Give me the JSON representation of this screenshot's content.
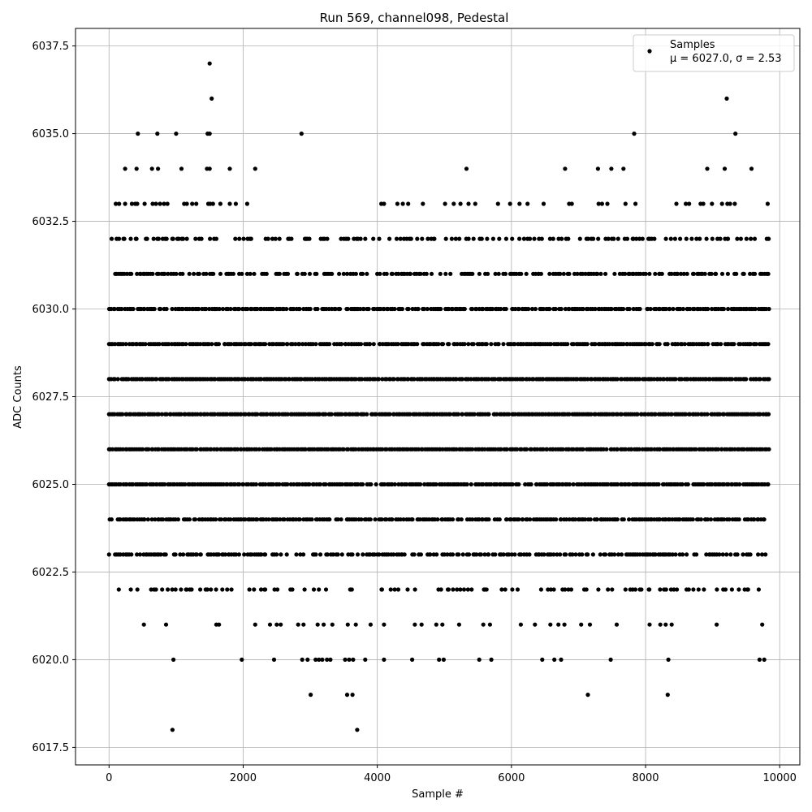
{
  "chart_data": {
    "type": "scatter",
    "title": "Run 569, channel098, Pedestal",
    "xlabel": "Sample #",
    "ylabel": "ADC Counts",
    "xlim": [
      -500,
      10300
    ],
    "ylim": [
      6017.0,
      6038.0
    ],
    "x_ticks": [
      0,
      2000,
      4000,
      6000,
      8000,
      10000
    ],
    "x_tick_labels": [
      "0",
      "2000",
      "4000",
      "6000",
      "8000",
      "10000"
    ],
    "y_ticks": [
      6017.5,
      6020.0,
      6022.5,
      6025.0,
      6027.5,
      6030.0,
      6032.5,
      6035.0,
      6037.5
    ],
    "y_tick_labels": [
      "6017.5",
      "6020.0",
      "6022.5",
      "6025.0",
      "6027.5",
      "6030.0",
      "6032.5",
      "6035.0",
      "6037.5"
    ],
    "grid": true,
    "legend_position": "top-right",
    "marker_color": "#000000",
    "series": [
      {
        "name": "Samples",
        "label_line2": "μ = 6027.0, σ = 2.53",
        "x_range": [
          0,
          9840
        ],
        "levels": [
          {
            "y": 6024,
            "density": 0.85
          },
          {
            "y": 6025,
            "density": 0.92
          },
          {
            "y": 6026,
            "density": 0.99
          },
          {
            "y": 6027,
            "density": 0.99
          },
          {
            "y": 6028,
            "density": 0.99
          },
          {
            "y": 6029,
            "density": 0.92
          },
          {
            "y": 6030,
            "density": 0.85
          },
          {
            "y": 6031,
            "density": 0.62
          },
          {
            "y": 6032,
            "density": 0.42
          },
          {
            "y": 6023,
            "density": 0.65
          },
          {
            "y": 6022,
            "density": 0.32
          }
        ],
        "outliers": [
          {
            "x": 946,
            "y": 6018
          },
          {
            "x": 3700,
            "y": 6018
          },
          {
            "x": 3006,
            "y": 6019
          },
          {
            "x": 3550,
            "y": 6019
          },
          {
            "x": 3630,
            "y": 6019
          },
          {
            "x": 7140,
            "y": 6019
          },
          {
            "x": 8330,
            "y": 6019
          },
          {
            "x": 960,
            "y": 6020
          },
          {
            "x": 1980,
            "y": 6020
          },
          {
            "x": 2460,
            "y": 6020
          },
          {
            "x": 2880,
            "y": 6020
          },
          {
            "x": 2960,
            "y": 6020
          },
          {
            "x": 3080,
            "y": 6020
          },
          {
            "x": 3130,
            "y": 6020
          },
          {
            "x": 3180,
            "y": 6020
          },
          {
            "x": 3250,
            "y": 6020
          },
          {
            "x": 3300,
            "y": 6020
          },
          {
            "x": 3520,
            "y": 6020
          },
          {
            "x": 3580,
            "y": 6020
          },
          {
            "x": 3640,
            "y": 6020
          },
          {
            "x": 3820,
            "y": 6020
          },
          {
            "x": 4100,
            "y": 6020
          },
          {
            "x": 4520,
            "y": 6020
          },
          {
            "x": 4920,
            "y": 6020
          },
          {
            "x": 4990,
            "y": 6020
          },
          {
            "x": 5520,
            "y": 6020
          },
          {
            "x": 5700,
            "y": 6020
          },
          {
            "x": 6460,
            "y": 6020
          },
          {
            "x": 6640,
            "y": 6020
          },
          {
            "x": 6740,
            "y": 6020
          },
          {
            "x": 7480,
            "y": 6020
          },
          {
            "x": 8340,
            "y": 6020
          },
          {
            "x": 9700,
            "y": 6020
          },
          {
            "x": 9770,
            "y": 6020
          },
          {
            "x": 520,
            "y": 6021
          },
          {
            "x": 850,
            "y": 6021
          },
          {
            "x": 1600,
            "y": 6021
          },
          {
            "x": 1640,
            "y": 6021
          },
          {
            "x": 2180,
            "y": 6021
          },
          {
            "x": 2400,
            "y": 6021
          },
          {
            "x": 2500,
            "y": 6021
          },
          {
            "x": 2560,
            "y": 6021
          },
          {
            "x": 2820,
            "y": 6021
          },
          {
            "x": 2900,
            "y": 6021
          },
          {
            "x": 3110,
            "y": 6021
          },
          {
            "x": 3200,
            "y": 6021
          },
          {
            "x": 3330,
            "y": 6021
          },
          {
            "x": 3560,
            "y": 6021
          },
          {
            "x": 3680,
            "y": 6021
          },
          {
            "x": 3900,
            "y": 6021
          },
          {
            "x": 4100,
            "y": 6021
          },
          {
            "x": 4560,
            "y": 6021
          },
          {
            "x": 4660,
            "y": 6021
          },
          {
            "x": 4880,
            "y": 6021
          },
          {
            "x": 4970,
            "y": 6021
          },
          {
            "x": 5220,
            "y": 6021
          },
          {
            "x": 5580,
            "y": 6021
          },
          {
            "x": 5680,
            "y": 6021
          },
          {
            "x": 6140,
            "y": 6021
          },
          {
            "x": 6350,
            "y": 6021
          },
          {
            "x": 6580,
            "y": 6021
          },
          {
            "x": 6700,
            "y": 6021
          },
          {
            "x": 6790,
            "y": 6021
          },
          {
            "x": 7040,
            "y": 6021
          },
          {
            "x": 7170,
            "y": 6021
          },
          {
            "x": 7570,
            "y": 6021
          },
          {
            "x": 8060,
            "y": 6021
          },
          {
            "x": 8220,
            "y": 6021
          },
          {
            "x": 8300,
            "y": 6021
          },
          {
            "x": 8390,
            "y": 6021
          },
          {
            "x": 9060,
            "y": 6021
          },
          {
            "x": 9740,
            "y": 6021
          },
          {
            "x": 100,
            "y": 6033
          },
          {
            "x": 150,
            "y": 6033
          },
          {
            "x": 240,
            "y": 6033
          },
          {
            "x": 340,
            "y": 6033
          },
          {
            "x": 390,
            "y": 6033
          },
          {
            "x": 420,
            "y": 6033
          },
          {
            "x": 530,
            "y": 6033
          },
          {
            "x": 650,
            "y": 6033
          },
          {
            "x": 700,
            "y": 6033
          },
          {
            "x": 760,
            "y": 6033
          },
          {
            "x": 820,
            "y": 6033
          },
          {
            "x": 870,
            "y": 6033
          },
          {
            "x": 1120,
            "y": 6033
          },
          {
            "x": 1160,
            "y": 6033
          },
          {
            "x": 1240,
            "y": 6033
          },
          {
            "x": 1300,
            "y": 6033
          },
          {
            "x": 1480,
            "y": 6033
          },
          {
            "x": 1510,
            "y": 6033
          },
          {
            "x": 1550,
            "y": 6033
          },
          {
            "x": 1660,
            "y": 6033
          },
          {
            "x": 1800,
            "y": 6033
          },
          {
            "x": 1890,
            "y": 6033
          },
          {
            "x": 2060,
            "y": 6033
          },
          {
            "x": 4060,
            "y": 6033
          },
          {
            "x": 4100,
            "y": 6033
          },
          {
            "x": 4300,
            "y": 6033
          },
          {
            "x": 4380,
            "y": 6033
          },
          {
            "x": 4460,
            "y": 6033
          },
          {
            "x": 4680,
            "y": 6033
          },
          {
            "x": 5010,
            "y": 6033
          },
          {
            "x": 5140,
            "y": 6033
          },
          {
            "x": 5240,
            "y": 6033
          },
          {
            "x": 5360,
            "y": 6033
          },
          {
            "x": 5460,
            "y": 6033
          },
          {
            "x": 5800,
            "y": 6033
          },
          {
            "x": 5980,
            "y": 6033
          },
          {
            "x": 6120,
            "y": 6033
          },
          {
            "x": 6240,
            "y": 6033
          },
          {
            "x": 6480,
            "y": 6033
          },
          {
            "x": 6860,
            "y": 6033
          },
          {
            "x": 6900,
            "y": 6033
          },
          {
            "x": 7300,
            "y": 6033
          },
          {
            "x": 7350,
            "y": 6033
          },
          {
            "x": 7430,
            "y": 6033
          },
          {
            "x": 7700,
            "y": 6033
          },
          {
            "x": 7850,
            "y": 6033
          },
          {
            "x": 8460,
            "y": 6033
          },
          {
            "x": 8600,
            "y": 6033
          },
          {
            "x": 8650,
            "y": 6033
          },
          {
            "x": 8820,
            "y": 6033
          },
          {
            "x": 8860,
            "y": 6033
          },
          {
            "x": 8990,
            "y": 6033
          },
          {
            "x": 9140,
            "y": 6033
          },
          {
            "x": 9220,
            "y": 6033
          },
          {
            "x": 9260,
            "y": 6033
          },
          {
            "x": 9330,
            "y": 6033
          },
          {
            "x": 9820,
            "y": 6033
          },
          {
            "x": 240,
            "y": 6034
          },
          {
            "x": 410,
            "y": 6034
          },
          {
            "x": 640,
            "y": 6034
          },
          {
            "x": 730,
            "y": 6034
          },
          {
            "x": 1080,
            "y": 6034
          },
          {
            "x": 1460,
            "y": 6034
          },
          {
            "x": 1500,
            "y": 6034
          },
          {
            "x": 1800,
            "y": 6034
          },
          {
            "x": 2180,
            "y": 6034
          },
          {
            "x": 5330,
            "y": 6034
          },
          {
            "x": 6800,
            "y": 6034
          },
          {
            "x": 7290,
            "y": 6034
          },
          {
            "x": 7490,
            "y": 6034
          },
          {
            "x": 7670,
            "y": 6034
          },
          {
            "x": 8920,
            "y": 6034
          },
          {
            "x": 9180,
            "y": 6034
          },
          {
            "x": 9580,
            "y": 6034
          },
          {
            "x": 430,
            "y": 6035
          },
          {
            "x": 720,
            "y": 6035
          },
          {
            "x": 1000,
            "y": 6035
          },
          {
            "x": 1470,
            "y": 6035
          },
          {
            "x": 1500,
            "y": 6035
          },
          {
            "x": 2870,
            "y": 6035
          },
          {
            "x": 7830,
            "y": 6035
          },
          {
            "x": 9340,
            "y": 6035
          },
          {
            "x": 1530,
            "y": 6036
          },
          {
            "x": 9210,
            "y": 6036
          },
          {
            "x": 1500,
            "y": 6037
          }
        ]
      }
    ]
  }
}
